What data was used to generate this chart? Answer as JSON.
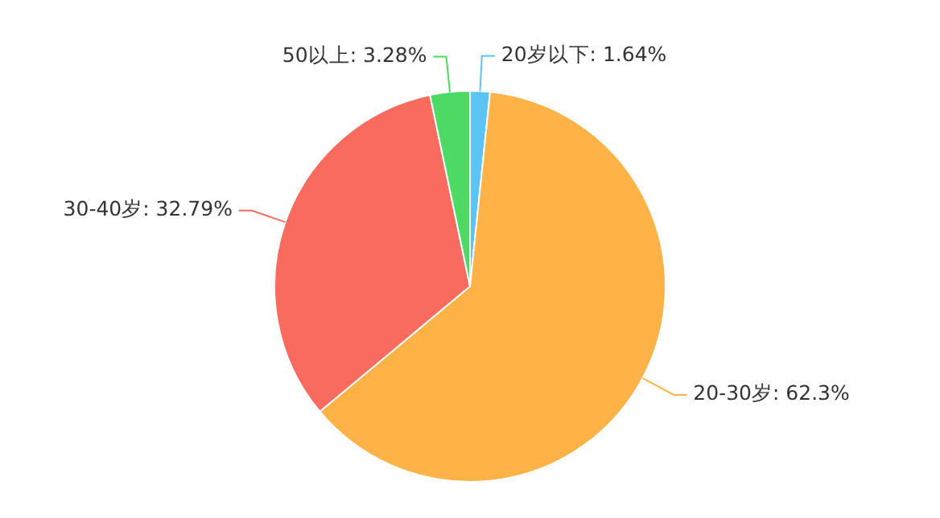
{
  "chart_data": {
    "type": "pie",
    "categories": [
      "20岁以下",
      "20-30岁",
      "30-40岁",
      "50以上"
    ],
    "values": [
      1.64,
      62.3,
      32.79,
      3.28
    ],
    "value_labels": [
      "1.64%",
      "62.3%",
      "32.79%",
      "3.28%"
    ],
    "colors": [
      "#5bc4f5",
      "#ffb347",
      "#fa6b5f",
      "#4cd964"
    ],
    "legend": false
  }
}
